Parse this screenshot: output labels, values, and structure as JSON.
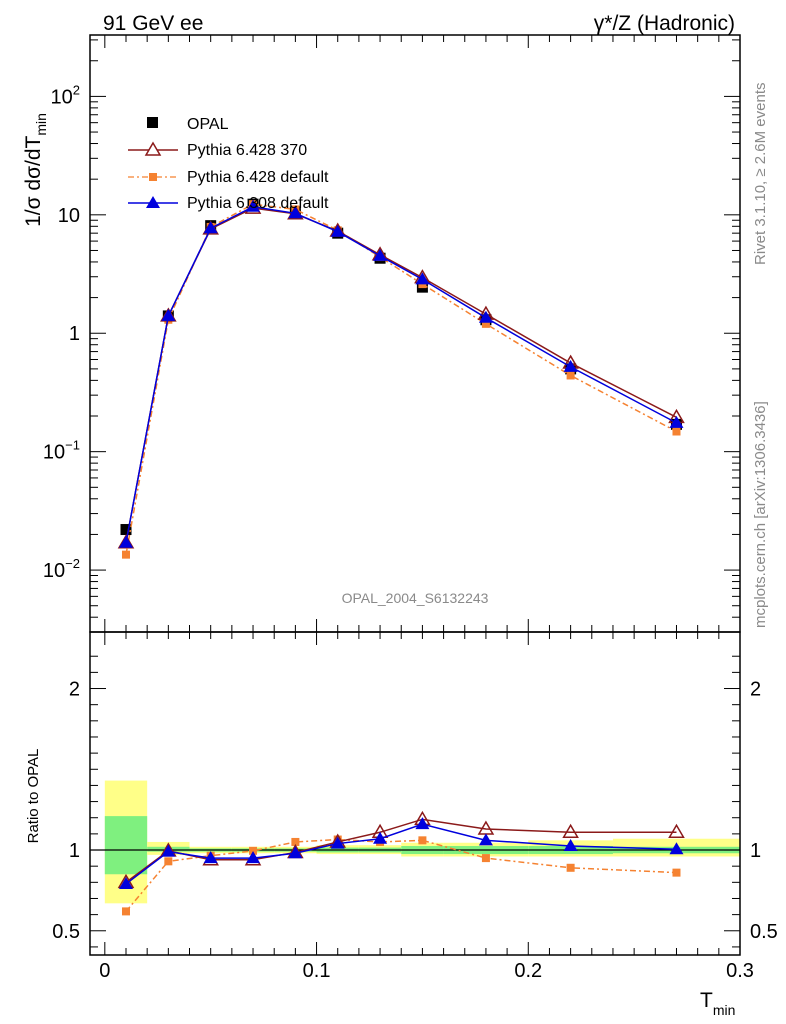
{
  "header": {
    "left": "91 GeV ee",
    "right": "γ*/Z (Hadronic)"
  },
  "side_labels": {
    "rivet": "Rivet 3.1.10, ≥ 2.6M events",
    "mcplots": "mcplots.cern.ch [arXiv:1306.3436]"
  },
  "watermark": "OPAL_2004_S6132243",
  "colors": {
    "opal": "#000000",
    "pythia370": "#8b1a1a",
    "pythia_default": "#f58231",
    "pythia6308": "#0000dd",
    "band_inner": "#7ff07f",
    "band_outer": "#ffff88"
  },
  "chart_data": [
    {
      "type": "line",
      "ylabel": "1/σ dσ/dT_min",
      "yscale": "log",
      "ylim": [
        0.003,
        330
      ],
      "xlim": [
        -0.007,
        0.3
      ],
      "y_ticks": [
        "10^-2",
        "10^-1",
        "1",
        "10",
        "10^2"
      ],
      "x": [
        0.01,
        0.03,
        0.05,
        0.07,
        0.09,
        0.11,
        0.13,
        0.15,
        0.18,
        0.22,
        0.27
      ],
      "series": [
        {
          "name": "OPAL",
          "values": [
            0.022,
            1.4,
            8.1,
            12.3,
            10.6,
            7.0,
            4.3,
            2.45,
            1.3,
            0.5,
            0.17
          ]
        },
        {
          "name": "Pythia 6.428 370",
          "values": [
            0.017,
            1.4,
            7.6,
            11.4,
            10.2,
            7.3,
            4.6,
            2.95,
            1.45,
            0.56,
            0.195
          ]
        },
        {
          "name": "Pythia 6.428 default",
          "values": [
            0.0135,
            1.3,
            7.9,
            12.3,
            11.1,
            7.4,
            4.4,
            2.6,
            1.2,
            0.44,
            0.148
          ]
        },
        {
          "name": "Pythia 6.308 default",
          "values": [
            0.017,
            1.4,
            7.7,
            11.7,
            10.3,
            7.2,
            4.5,
            2.85,
            1.35,
            0.52,
            0.175
          ]
        }
      ]
    },
    {
      "type": "line",
      "ylabel": "Ratio to OPAL",
      "xlabel": "T_min",
      "ylim": [
        0.35,
        2.35
      ],
      "xlim": [
        -0.007,
        0.3
      ],
      "x_ticks": [
        "0",
        "0.1",
        "0.2",
        "0.3"
      ],
      "y_ticks": [
        "0.5",
        "1",
        "2"
      ],
      "x": [
        0.01,
        0.03,
        0.05,
        0.07,
        0.09,
        0.11,
        0.13,
        0.15,
        0.18,
        0.22,
        0.27
      ],
      "bin_edges": [
        0.0,
        0.02,
        0.04,
        0.06,
        0.08,
        0.1,
        0.12,
        0.14,
        0.16,
        0.2,
        0.24,
        0.3
      ],
      "band_inner": [
        [
          0.85,
          1.21
        ],
        [
          0.99,
          1.02
        ],
        [
          0.99,
          1.01
        ],
        [
          0.99,
          1.01
        ],
        [
          0.99,
          1.01
        ],
        [
          0.985,
          1.015
        ],
        [
          0.985,
          1.015
        ],
        [
          0.975,
          1.025
        ],
        [
          0.975,
          1.025
        ],
        [
          0.975,
          1.025
        ],
        [
          0.98,
          1.02
        ]
      ],
      "band_outer": [
        [
          0.67,
          1.43
        ],
        [
          0.97,
          1.05
        ],
        [
          0.98,
          1.02
        ],
        [
          0.98,
          1.02
        ],
        [
          0.98,
          1.02
        ],
        [
          0.975,
          1.03
        ],
        [
          0.975,
          1.03
        ],
        [
          0.96,
          1.045
        ],
        [
          0.96,
          1.045
        ],
        [
          0.96,
          1.06
        ],
        [
          0.96,
          1.07
        ]
      ],
      "series": [
        {
          "name": "Pythia 6.428 370",
          "values": [
            0.8,
            0.995,
            0.94,
            0.94,
            0.985,
            1.05,
            1.11,
            1.19,
            1.13,
            1.11,
            1.11
          ]
        },
        {
          "name": "Pythia 6.428 default",
          "values": [
            0.62,
            0.93,
            0.965,
            0.995,
            1.05,
            1.065,
            1.05,
            1.06,
            0.95,
            0.89,
            0.86
          ]
        },
        {
          "name": "Pythia 6.308 default",
          "values": [
            0.79,
            0.99,
            0.95,
            0.95,
            0.98,
            1.04,
            1.07,
            1.16,
            1.06,
            1.025,
            1.005
          ]
        }
      ]
    }
  ]
}
